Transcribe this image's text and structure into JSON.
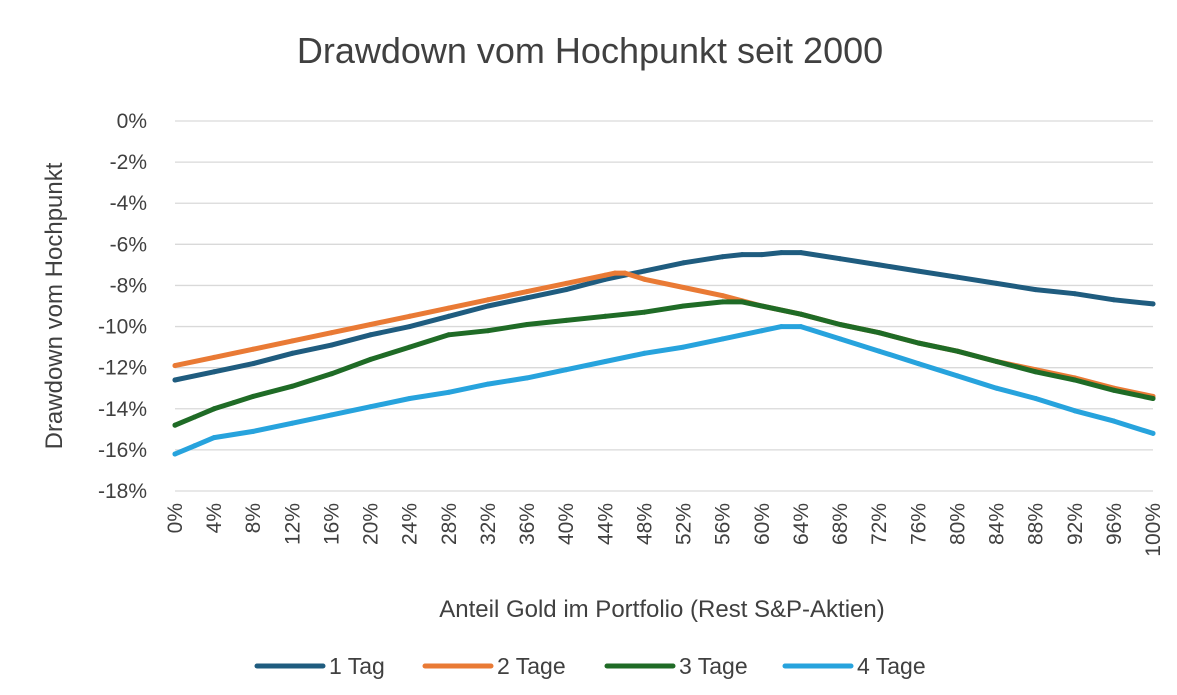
{
  "chart_data": {
    "type": "line",
    "title": "Drawdown vom Hochpunkt seit 2000",
    "xlabel": "Anteil Gold im Portfolio (Rest S&P-Aktien)",
    "ylabel": "Drawdown vom Hochpunkt",
    "x_unit": "%",
    "y_unit": "%",
    "xlim": [
      0,
      100
    ],
    "ylim": [
      -18,
      0
    ],
    "grid": true,
    "legend_position": "bottom",
    "x_tick_labels": [
      "0%",
      "4%",
      "8%",
      "12%",
      "16%",
      "20%",
      "24%",
      "28%",
      "32%",
      "36%",
      "40%",
      "44%",
      "48%",
      "52%",
      "56%",
      "60%",
      "64%",
      "68%",
      "72%",
      "76%",
      "80%",
      "84%",
      "88%",
      "92%",
      "96%",
      "100%"
    ],
    "y_tick_labels": [
      "0%",
      "-2%",
      "-4%",
      "-6%",
      "-8%",
      "-10%",
      "-12%",
      "-14%",
      "-16%",
      "-18%"
    ],
    "x_ticks": [
      0,
      4,
      8,
      12,
      16,
      20,
      24,
      28,
      32,
      36,
      40,
      44,
      48,
      52,
      56,
      60,
      64,
      68,
      72,
      76,
      80,
      84,
      88,
      92,
      96,
      100
    ],
    "y_ticks": [
      0,
      -2,
      -4,
      -6,
      -8,
      -10,
      -12,
      -14,
      -16,
      -18
    ],
    "series": [
      {
        "name": "1 Tag",
        "color": "#1f5c7f",
        "x": [
          0,
          4,
          8,
          12,
          16,
          20,
          24,
          28,
          32,
          36,
          40,
          44,
          48,
          52,
          56,
          58,
          60,
          62,
          64,
          68,
          72,
          76,
          80,
          84,
          88,
          92,
          96,
          100
        ],
        "y": [
          -12.6,
          -12.2,
          -11.8,
          -11.3,
          -10.9,
          -10.4,
          -10.0,
          -9.5,
          -9.0,
          -8.6,
          -8.2,
          -7.7,
          -7.3,
          -6.9,
          -6.6,
          -6.5,
          -6.5,
          -6.4,
          -6.4,
          -6.7,
          -7.0,
          -7.3,
          -7.6,
          -7.9,
          -8.2,
          -8.4,
          -8.7,
          -8.9
        ]
      },
      {
        "name": "2 Tage",
        "color": "#e97a35",
        "x": [
          0,
          4,
          8,
          12,
          16,
          20,
          24,
          28,
          32,
          36,
          40,
          44,
          45,
          46,
          48,
          52,
          56,
          60,
          64,
          68,
          72,
          76,
          80,
          84,
          88,
          92,
          96,
          100
        ],
        "y": [
          -11.9,
          -11.5,
          -11.1,
          -10.7,
          -10.3,
          -9.9,
          -9.5,
          -9.1,
          -8.7,
          -8.3,
          -7.9,
          -7.5,
          -7.4,
          -7.4,
          -7.7,
          -8.1,
          -8.5,
          -9.0,
          -9.4,
          -9.9,
          -10.3,
          -10.8,
          -11.2,
          -11.7,
          -12.1,
          -12.5,
          -13.0,
          -13.4
        ]
      },
      {
        "name": "3 Tage",
        "color": "#1f6b26",
        "x": [
          0,
          2,
          4,
          6,
          8,
          12,
          16,
          20,
          24,
          28,
          32,
          36,
          40,
          44,
          48,
          52,
          56,
          58,
          60,
          64,
          68,
          72,
          76,
          80,
          84,
          88,
          92,
          96,
          100
        ],
        "y": [
          -14.8,
          -14.4,
          -14.0,
          -13.7,
          -13.4,
          -12.9,
          -12.3,
          -11.6,
          -11.0,
          -10.4,
          -10.2,
          -9.9,
          -9.7,
          -9.5,
          -9.3,
          -9.0,
          -8.8,
          -8.8,
          -9.0,
          -9.4,
          -9.9,
          -10.3,
          -10.8,
          -11.2,
          -11.7,
          -12.2,
          -12.6,
          -13.1,
          -13.5
        ]
      },
      {
        "name": "4 Tage",
        "color": "#27a3dd",
        "x": [
          0,
          2,
          4,
          8,
          12,
          16,
          20,
          24,
          28,
          32,
          36,
          40,
          44,
          48,
          52,
          56,
          60,
          62,
          64,
          68,
          72,
          76,
          80,
          84,
          88,
          92,
          96,
          100
        ],
        "y": [
          -16.2,
          -15.8,
          -15.4,
          -15.1,
          -14.7,
          -14.3,
          -13.9,
          -13.5,
          -13.2,
          -12.8,
          -12.5,
          -12.1,
          -11.7,
          -11.3,
          -11.0,
          -10.6,
          -10.2,
          -10.0,
          -10.0,
          -10.6,
          -11.2,
          -11.8,
          -12.4,
          -13.0,
          -13.5,
          -14.1,
          -14.6,
          -15.2
        ]
      }
    ]
  }
}
